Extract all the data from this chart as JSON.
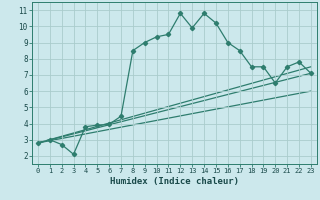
{
  "title": "",
  "xlabel": "Humidex (Indice chaleur)",
  "bg_color": "#cce8ec",
  "grid_color": "#aacccc",
  "line_color": "#2e7d6e",
  "xlim": [
    -0.5,
    23.5
  ],
  "ylim": [
    1.5,
    11.5
  ],
  "xticks": [
    0,
    1,
    2,
    3,
    4,
    5,
    6,
    7,
    8,
    9,
    10,
    11,
    12,
    13,
    14,
    15,
    16,
    17,
    18,
    19,
    20,
    21,
    22,
    23
  ],
  "yticks": [
    2,
    3,
    4,
    5,
    6,
    7,
    8,
    9,
    10,
    11
  ],
  "line1_x": [
    0,
    1,
    2,
    3,
    4,
    5,
    6,
    7,
    8,
    9,
    10,
    11,
    12,
    13,
    14,
    15,
    16,
    17,
    18,
    19,
    20,
    21,
    22,
    23
  ],
  "line1_y": [
    2.8,
    3.0,
    2.7,
    2.1,
    3.8,
    3.9,
    3.95,
    4.45,
    8.5,
    9.0,
    9.35,
    9.5,
    10.8,
    9.9,
    10.8,
    10.2,
    9.0,
    8.5,
    7.5,
    7.5,
    6.5,
    7.5,
    7.8,
    7.1
  ],
  "line2_x": [
    0,
    23
  ],
  "line2_y": [
    2.8,
    7.5
  ],
  "line3_x": [
    0,
    23
  ],
  "line3_y": [
    2.8,
    6.0
  ],
  "line4_x": [
    0,
    23
  ],
  "line4_y": [
    2.8,
    7.1
  ]
}
